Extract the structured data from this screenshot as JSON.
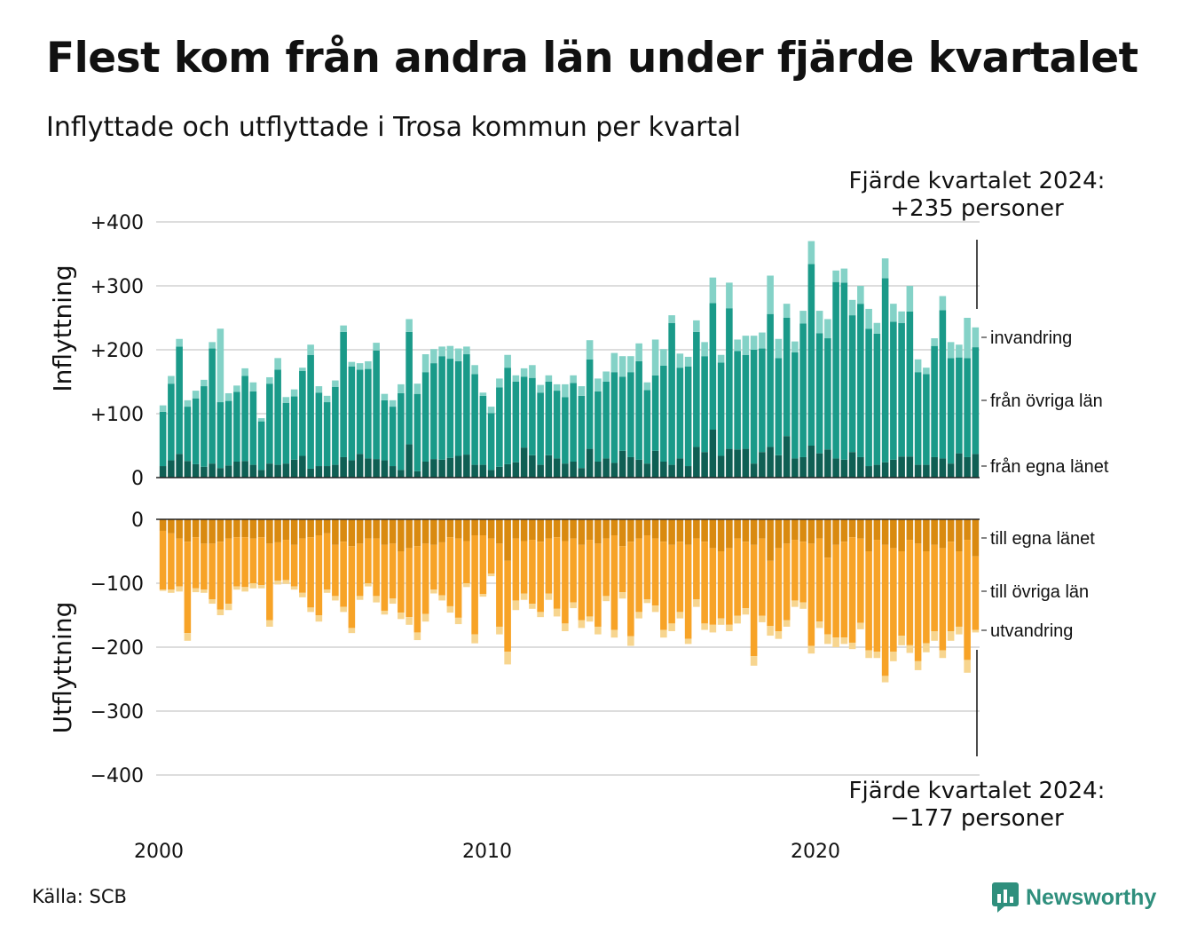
{
  "title": "Flest kom från andra län under fjärde kvartalet",
  "subtitle": "Inflyttade och utflyttade i Trosa kommun per kvartal",
  "source": "Källa: SCB",
  "brand": "Newsworthy",
  "colors": {
    "in_own": "#0f5f54",
    "in_other": "#1a9a89",
    "in_imm": "#84d2c7",
    "out_own": "#d98a10",
    "out_other": "#f7a327",
    "out_emi": "#f7d58f",
    "grid": "#dddddd",
    "brand": "#2f8f7d"
  },
  "chart_data": [
    {
      "type": "bar",
      "stacked": true,
      "ylabel": "Inflyttning",
      "ylim": [
        0,
        400
      ],
      "yticks": [
        0,
        100,
        200,
        300,
        400
      ],
      "ytick_labels": [
        "0",
        "+100",
        "+200",
        "+300",
        "+400"
      ],
      "x": [
        "2000Q1",
        "2000Q2",
        "2000Q3",
        "2000Q4",
        "2001Q1",
        "2001Q2",
        "2001Q3",
        "2001Q4",
        "2002Q1",
        "2002Q2",
        "2002Q3",
        "2002Q4",
        "2003Q1",
        "2003Q2",
        "2003Q3",
        "2003Q4",
        "2004Q1",
        "2004Q2",
        "2004Q3",
        "2004Q4",
        "2005Q1",
        "2005Q2",
        "2005Q3",
        "2005Q4",
        "2006Q1",
        "2006Q2",
        "2006Q3",
        "2006Q4",
        "2007Q1",
        "2007Q2",
        "2007Q3",
        "2007Q4",
        "2008Q1",
        "2008Q2",
        "2008Q3",
        "2008Q4",
        "2009Q1",
        "2009Q2",
        "2009Q3",
        "2009Q4",
        "2010Q1",
        "2010Q2",
        "2010Q3",
        "2010Q4",
        "2011Q1",
        "2011Q2",
        "2011Q3",
        "2011Q4",
        "2012Q1",
        "2012Q2",
        "2012Q3",
        "2012Q4",
        "2013Q1",
        "2013Q2",
        "2013Q3",
        "2013Q4",
        "2014Q1",
        "2014Q2",
        "2014Q3",
        "2014Q4",
        "2015Q1",
        "2015Q2",
        "2015Q3",
        "2015Q4",
        "2016Q1",
        "2016Q2",
        "2016Q3",
        "2016Q4",
        "2017Q1",
        "2017Q2",
        "2017Q3",
        "2017Q4",
        "2018Q1",
        "2018Q2",
        "2018Q3",
        "2018Q4",
        "2019Q1",
        "2019Q2",
        "2019Q3",
        "2019Q4",
        "2020Q1",
        "2020Q2",
        "2020Q3",
        "2020Q4",
        "2021Q1",
        "2021Q2",
        "2021Q3",
        "2021Q4",
        "2022Q1",
        "2022Q2",
        "2022Q3",
        "2022Q4",
        "2023Q1",
        "2023Q2",
        "2023Q3",
        "2023Q4",
        "2024Q1",
        "2024Q2",
        "2024Q3",
        "2024Q4"
      ],
      "xtick_labels": [
        {
          "x": "2000Q1",
          "label": "2000"
        },
        {
          "x": "2010Q1",
          "label": "2010"
        },
        {
          "x": "2020Q1",
          "label": "2020"
        }
      ],
      "series": [
        {
          "name": "från egna länet",
          "color": "#0f5f54",
          "values": [
            18,
            27,
            37,
            26,
            21,
            17,
            22,
            15,
            19,
            25,
            26,
            20,
            12,
            22,
            20,
            22,
            28,
            34,
            14,
            18,
            18,
            20,
            32,
            27,
            37,
            30,
            29,
            27,
            18,
            12,
            52,
            10,
            25,
            29,
            28,
            31,
            34,
            36,
            20,
            20,
            12,
            17,
            21,
            24,
            47,
            35,
            20,
            35,
            30,
            22,
            25,
            15,
            45,
            25,
            30,
            23,
            42,
            32,
            28,
            22,
            42,
            25,
            20,
            30,
            18,
            48,
            40,
            75,
            34,
            45,
            44,
            45,
            22,
            40,
            48,
            35,
            65,
            30,
            32,
            50,
            38,
            44,
            30,
            28,
            40,
            32,
            18,
            20,
            24,
            28,
            33,
            33,
            20,
            20,
            32,
            30,
            22,
            38,
            32,
            37
          ]
        },
        {
          "name": "från övriga län",
          "color": "#1a9a89",
          "values": [
            85,
            120,
            168,
            85,
            103,
            126,
            180,
            103,
            101,
            109,
            133,
            115,
            76,
            125,
            149,
            95,
            99,
            133,
            178,
            115,
            100,
            122,
            196,
            147,
            132,
            140,
            170,
            94,
            93,
            120,
            176,
            121,
            140,
            150,
            162,
            155,
            148,
            157,
            142,
            108,
            89,
            124,
            151,
            126,
            111,
            121,
            113,
            115,
            106,
            104,
            123,
            113,
            140,
            110,
            120,
            142,
            116,
            133,
            154,
            115,
            118,
            150,
            222,
            142,
            156,
            180,
            150,
            198,
            146,
            220,
            154,
            147,
            178,
            162,
            208,
            152,
            185,
            166,
            209,
            284,
            188,
            174,
            276,
            277,
            214,
            240,
            215,
            205,
            288,
            216,
            209,
            227,
            145,
            142,
            174,
            232,
            165,
            150,
            155,
            167
          ]
        },
        {
          "name": "invandring",
          "color": "#84d2c7",
          "values": [
            10,
            12,
            12,
            10,
            12,
            10,
            10,
            115,
            12,
            10,
            12,
            14,
            5,
            10,
            18,
            9,
            11,
            5,
            16,
            10,
            10,
            10,
            10,
            7,
            10,
            12,
            12,
            10,
            10,
            14,
            20,
            16,
            28,
            22,
            15,
            20,
            20,
            12,
            14,
            5,
            10,
            14,
            20,
            10,
            13,
            20,
            12,
            10,
            10,
            20,
            12,
            15,
            30,
            20,
            16,
            30,
            32,
            25,
            28,
            12,
            56,
            26,
            12,
            22,
            15,
            18,
            22,
            40,
            12,
            40,
            18,
            30,
            22,
            25,
            60,
            30,
            22,
            17,
            20,
            36,
            35,
            30,
            18,
            22,
            24,
            28,
            31,
            17,
            31,
            28,
            18,
            40,
            20,
            10,
            12,
            22,
            25,
            20,
            63,
            31
          ]
        }
      ],
      "legend_labels": [
        "invandring",
        "från övriga län",
        "från egna länet"
      ],
      "annotation": {
        "line1": "Fjärde kvartalet 2024:",
        "line2": "+235 personer"
      }
    },
    {
      "type": "bar",
      "stacked": true,
      "ylabel": "Utflyttning",
      "ylim": [
        -400,
        0
      ],
      "yticks": [
        0,
        -100,
        -200,
        -300,
        -400
      ],
      "ytick_labels": [
        "0",
        "−100",
        "−200",
        "−300",
        "−400"
      ],
      "series": [
        {
          "name": "till egna länet",
          "color": "#d98a10",
          "values": [
            -18,
            -22,
            -30,
            -35,
            -28,
            -38,
            -38,
            -35,
            -30,
            -28,
            -28,
            -30,
            -28,
            -38,
            -36,
            -32,
            -40,
            -30,
            -28,
            -25,
            -22,
            -40,
            -35,
            -42,
            -38,
            -30,
            -30,
            -40,
            -38,
            -50,
            -45,
            -42,
            -38,
            -40,
            -36,
            -28,
            -30,
            -34,
            -25,
            -25,
            -30,
            -38,
            -65,
            -30,
            -34,
            -32,
            -35,
            -30,
            -28,
            -34,
            -30,
            -40,
            -32,
            -38,
            -30,
            -25,
            -42,
            -35,
            -30,
            -25,
            -30,
            -35,
            -40,
            -35,
            -40,
            -30,
            -35,
            -45,
            -50,
            -45,
            -30,
            -35,
            -40,
            -30,
            -65,
            -45,
            -38,
            -32,
            -35,
            -38,
            -30,
            -60,
            -40,
            -35,
            -28,
            -30,
            -50,
            -32,
            -40,
            -45,
            -50,
            -32,
            -38,
            -50,
            -40,
            -45,
            -35,
            -50,
            -32,
            -58
          ]
        },
        {
          "name": "till övriga län",
          "color": "#f7a327",
          "values": [
            -92,
            -88,
            -75,
            -143,
            -80,
            -72,
            -87,
            -106,
            -102,
            -77,
            -78,
            -70,
            -75,
            -120,
            -60,
            -63,
            -65,
            -85,
            -110,
            -125,
            -88,
            -80,
            -102,
            -128,
            -82,
            -70,
            -90,
            -103,
            -86,
            -96,
            -108,
            -135,
            -110,
            -70,
            -83,
            -108,
            -124,
            -66,
            -155,
            -92,
            -55,
            -130,
            -142,
            -97,
            -82,
            -100,
            -110,
            -86,
            -112,
            -129,
            -100,
            -118,
            -120,
            -130,
            -90,
            -148,
            -72,
            -148,
            -115,
            -100,
            -105,
            -138,
            -123,
            -110,
            -147,
            -95,
            -128,
            -120,
            -105,
            -120,
            -121,
            -104,
            -174,
            -121,
            -102,
            -130,
            -120,
            -95,
            -95,
            -160,
            -130,
            -120,
            -145,
            -150,
            -165,
            -132,
            -155,
            -175,
            -205,
            -162,
            -132,
            -165,
            -184,
            -144,
            -135,
            -160,
            -140,
            -118,
            -188,
            -115
          ]
        },
        {
          "name": "utvandring",
          "color": "#f7d58f",
          "values": [
            -2,
            -5,
            -8,
            -12,
            -6,
            -5,
            -7,
            -9,
            -10,
            -5,
            -7,
            -8,
            -5,
            -10,
            -6,
            -6,
            -5,
            -7,
            -7,
            -10,
            -5,
            -7,
            -8,
            -8,
            -6,
            -5,
            -10,
            -6,
            -8,
            -10,
            -12,
            -12,
            -12,
            -6,
            -8,
            -10,
            -10,
            -6,
            -14,
            -4,
            -4,
            -12,
            -20,
            -15,
            -10,
            -8,
            -8,
            -10,
            -12,
            -12,
            -9,
            -12,
            -8,
            -12,
            -8,
            -12,
            -10,
            -15,
            -10,
            -6,
            -10,
            -12,
            -12,
            -10,
            -8,
            -12,
            -10,
            -12,
            -10,
            -10,
            -12,
            -10,
            -15,
            -10,
            -15,
            -12,
            -10,
            -10,
            -10,
            -12,
            -10,
            -15,
            -15,
            -10,
            -10,
            -10,
            -12,
            -10,
            -10,
            -15,
            -15,
            -12,
            -14,
            -14,
            -15,
            -12,
            -15,
            -12,
            -20,
            -4
          ]
        }
      ],
      "legend_labels": [
        "till egna länet",
        "till övriga län",
        "utvandring"
      ],
      "annotation": {
        "line1": "Fjärde kvartalet 2024:",
        "line2": "−177 personer"
      }
    }
  ]
}
